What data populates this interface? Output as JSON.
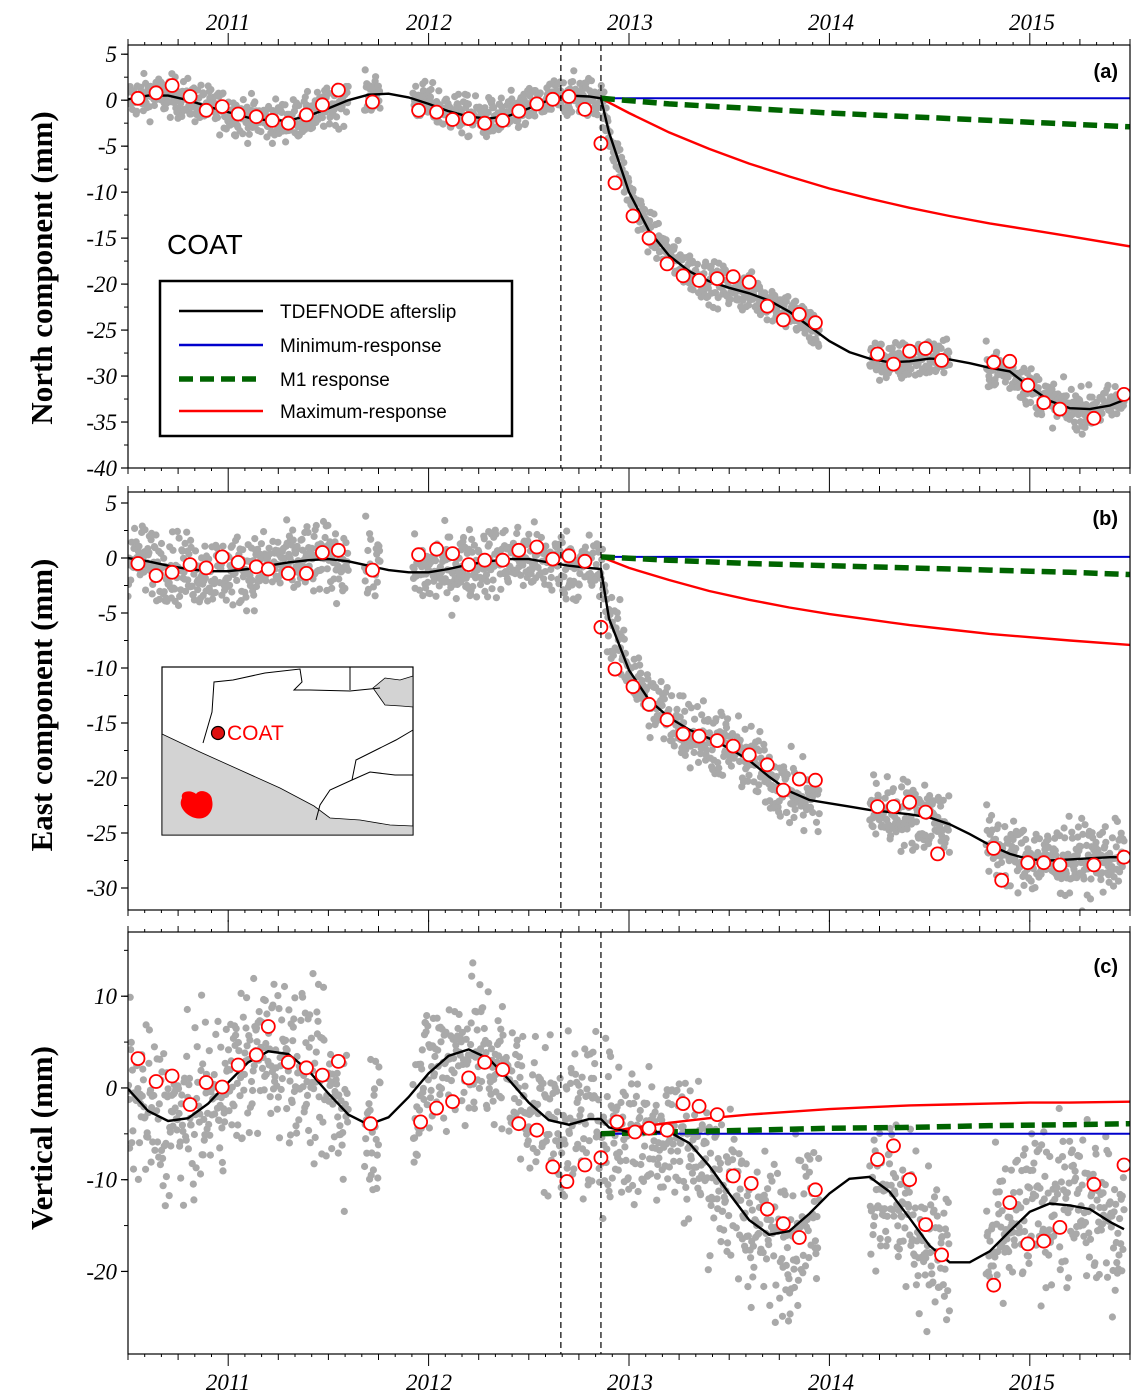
{
  "figure": {
    "station": "COAT",
    "inset_label": "COAT",
    "year_labels": [
      "2011",
      "2012",
      "2013",
      "2014",
      "2015"
    ],
    "event_lines": [
      2012.66,
      2012.86
    ],
    "legend": {
      "items": [
        {
          "label": "TDEFNODE afterslip",
          "color": "#000000",
          "dash": "solid"
        },
        {
          "label": "Minimum-response",
          "color": "#0000cc",
          "dash": "solid"
        },
        {
          "label": "M1 response",
          "color": "#006400",
          "dash": "dashed"
        },
        {
          "label": "Maximum-response",
          "color": "#ff0000",
          "dash": "solid"
        }
      ]
    },
    "colors": {
      "daily": "#a9a9a9",
      "monthly_fill": "#ffffff",
      "monthly_edge": "#ff0000",
      "afterslip": "#000000",
      "min": "#0000cc",
      "m1": "#006400",
      "max": "#ff0000"
    }
  },
  "chart_data": [
    {
      "type": "scatter",
      "panel_label": "(a)",
      "ylabel": "North component (mm)",
      "xlim": [
        2010.5,
        2015.5
      ],
      "ylim": [
        -40,
        6
      ],
      "yticks": [
        5,
        0,
        -5,
        -10,
        -15,
        -20,
        -25,
        -30,
        -35,
        -40
      ],
      "daily_model": {
        "kind": "north",
        "noise": 1.1
      },
      "monthly_points": {
        "x": [
          2010.55,
          2010.64,
          2010.72,
          2010.81,
          2010.89,
          2010.97,
          2011.05,
          2011.14,
          2011.22,
          2011.3,
          2011.39,
          2011.47,
          2011.55,
          2011.72,
          2011.95,
          2012.04,
          2012.12,
          2012.2,
          2012.28,
          2012.37,
          2012.45,
          2012.54,
          2012.62,
          2012.7,
          2012.78,
          2012.86,
          2012.93,
          2013.02,
          2013.1,
          2013.19,
          2013.27,
          2013.35,
          2013.44,
          2013.52,
          2013.6,
          2013.69,
          2013.77,
          2013.85,
          2013.93,
          2014.24,
          2014.32,
          2014.4,
          2014.48,
          2014.56,
          2014.82,
          2014.9,
          2014.99,
          2015.07,
          2015.15,
          2015.32,
          2015.47
        ],
        "y": [
          0.2,
          0.8,
          1.6,
          0.4,
          -1.1,
          -0.7,
          -1.5,
          -1.8,
          -2.2,
          -2.5,
          -1.6,
          -0.5,
          1.1,
          -0.2,
          -1.1,
          -1.3,
          -2.1,
          -2.0,
          -2.5,
          -2.2,
          -1.2,
          -0.4,
          0.1,
          0.4,
          -1.0,
          -4.7,
          -9.0,
          -12.6,
          -15.0,
          -17.8,
          -19.1,
          -19.6,
          -19.4,
          -19.2,
          -19.8,
          -22.4,
          -23.9,
          -23.3,
          -24.2,
          -27.6,
          -28.7,
          -27.3,
          -27.0,
          -28.3,
          -28.5,
          -28.4,
          -31.0,
          -32.9,
          -33.6,
          -34.6,
          -32.0
        ]
      },
      "series": [
        {
          "name": "TDEFNODE afterslip",
          "x": [
            2010.5,
            2010.6,
            2010.7,
            2010.8,
            2010.9,
            2011.0,
            2011.1,
            2011.2,
            2011.3,
            2011.4,
            2011.5,
            2011.6,
            2011.7,
            2011.8,
            2011.9,
            2012.0,
            2012.1,
            2012.2,
            2012.3,
            2012.4,
            2012.5,
            2012.6,
            2012.7,
            2012.8,
            2012.86,
            2012.9,
            2013.0,
            2013.1,
            2013.2,
            2013.3,
            2013.4,
            2013.5,
            2013.6,
            2013.7,
            2013.8,
            2013.9,
            2014.0,
            2014.1,
            2014.2,
            2014.3,
            2014.4,
            2014.5,
            2014.6,
            2014.7,
            2014.8,
            2014.9,
            2015.0,
            2015.1,
            2015.2,
            2015.3,
            2015.4,
            2015.47
          ],
          "y": [
            0.1,
            0.5,
            0.5,
            0.0,
            -0.7,
            -1.3,
            -1.9,
            -2.2,
            -2.2,
            -1.7,
            -0.9,
            0.0,
            0.6,
            0.7,
            0.3,
            -0.4,
            -1.2,
            -1.8,
            -2.0,
            -1.7,
            -0.9,
            0.0,
            0.5,
            0.4,
            0.2,
            -3.5,
            -10.0,
            -14.2,
            -16.9,
            -18.6,
            -19.7,
            -20.4,
            -21.0,
            -21.8,
            -23.0,
            -24.6,
            -26.2,
            -27.4,
            -28.1,
            -28.5,
            -28.4,
            -28.1,
            -28.2,
            -28.6,
            -29.1,
            -29.5,
            -31.2,
            -32.7,
            -33.5,
            -33.6,
            -33.2,
            -32.6
          ]
        },
        {
          "name": "Minimum-response",
          "x": [
            2012.86,
            2015.5
          ],
          "y": [
            0.2,
            0.2
          ]
        },
        {
          "name": "M1 response",
          "x": [
            2012.86,
            2013.2,
            2013.6,
            2014.0,
            2014.4,
            2014.8,
            2015.2,
            2015.5
          ],
          "y": [
            0.2,
            -0.4,
            -0.9,
            -1.4,
            -1.8,
            -2.2,
            -2.6,
            -2.9
          ]
        },
        {
          "name": "Maximum-response",
          "x": [
            2012.86,
            2013.0,
            2013.2,
            2013.4,
            2013.6,
            2013.8,
            2014.0,
            2014.2,
            2014.4,
            2014.6,
            2014.8,
            2015.0,
            2015.2,
            2015.5
          ],
          "y": [
            0.2,
            -1.4,
            -3.5,
            -5.3,
            -6.9,
            -8.3,
            -9.6,
            -10.7,
            -11.7,
            -12.6,
            -13.4,
            -14.1,
            -14.8,
            -15.9
          ]
        }
      ]
    },
    {
      "type": "scatter",
      "panel_label": "(b)",
      "ylabel": "East component (mm)",
      "xlim": [
        2010.5,
        2015.5
      ],
      "ylim": [
        -32,
        6
      ],
      "yticks": [
        5,
        0,
        -5,
        -10,
        -15,
        -20,
        -25,
        -30
      ],
      "daily_model": {
        "kind": "east",
        "noise": 1.6
      },
      "monthly_points": {
        "x": [
          2010.55,
          2010.64,
          2010.72,
          2010.81,
          2010.89,
          2010.97,
          2011.05,
          2011.14,
          2011.2,
          2011.3,
          2011.39,
          2011.47,
          2011.55,
          2011.72,
          2011.95,
          2012.04,
          2012.12,
          2012.2,
          2012.28,
          2012.37,
          2012.45,
          2012.54,
          2012.62,
          2012.7,
          2012.78,
          2012.86,
          2012.93,
          2013.02,
          2013.1,
          2013.19,
          2013.27,
          2013.35,
          2013.44,
          2013.52,
          2013.6,
          2013.69,
          2013.77,
          2013.85,
          2013.93,
          2014.24,
          2014.32,
          2014.4,
          2014.48,
          2014.54,
          2014.82,
          2014.86,
          2014.99,
          2015.07,
          2015.15,
          2015.32,
          2015.47
        ],
        "y": [
          -0.5,
          -1.6,
          -1.3,
          -0.6,
          -0.9,
          0.1,
          -0.4,
          -0.8,
          -1.0,
          -1.4,
          -1.4,
          0.5,
          0.7,
          -1.1,
          0.3,
          0.8,
          0.4,
          -0.6,
          -0.2,
          -0.2,
          0.7,
          1.0,
          -0.1,
          0.2,
          -0.3,
          -6.3,
          -10.1,
          -11.7,
          -13.3,
          -14.7,
          -16.0,
          -16.2,
          -16.6,
          -17.1,
          -17.9,
          -18.8,
          -21.1,
          -20.1,
          -20.2,
          -22.6,
          -22.6,
          -22.2,
          -23.1,
          -26.9,
          -26.4,
          -29.3,
          -27.7,
          -27.7,
          -27.9,
          -27.9,
          -27.2
        ]
      },
      "series": [
        {
          "name": "TDEFNODE afterslip",
          "x": [
            2010.5,
            2010.6,
            2010.7,
            2010.8,
            2010.9,
            2011.0,
            2011.1,
            2011.2,
            2011.3,
            2011.4,
            2011.5,
            2011.6,
            2011.7,
            2011.8,
            2011.9,
            2012.0,
            2012.1,
            2012.2,
            2012.3,
            2012.4,
            2012.5,
            2012.6,
            2012.7,
            2012.8,
            2012.86,
            2012.9,
            2013.0,
            2013.1,
            2013.2,
            2013.3,
            2013.4,
            2013.5,
            2013.6,
            2013.7,
            2013.8,
            2013.9,
            2014.0,
            2014.1,
            2014.2,
            2014.3,
            2014.4,
            2014.5,
            2014.6,
            2014.7,
            2014.8,
            2014.9,
            2015.0,
            2015.1,
            2015.2,
            2015.3,
            2015.4,
            2015.47
          ],
          "y": [
            0.0,
            -0.3,
            -0.7,
            -1.0,
            -1.2,
            -1.2,
            -1.0,
            -0.7,
            -0.4,
            -0.2,
            -0.1,
            -0.3,
            -0.7,
            -1.1,
            -1.3,
            -1.3,
            -1.0,
            -0.6,
            -0.3,
            -0.1,
            -0.1,
            -0.4,
            -0.7,
            -0.9,
            -1.0,
            -5.5,
            -10.2,
            -12.9,
            -14.5,
            -15.6,
            -16.4,
            -17.3,
            -18.4,
            -19.9,
            -21.2,
            -22.0,
            -22.3,
            -22.6,
            -22.9,
            -23.1,
            -23.3,
            -23.6,
            -24.2,
            -25.1,
            -26.1,
            -26.9,
            -27.4,
            -27.5,
            -27.4,
            -27.3,
            -27.2,
            -27.2
          ]
        },
        {
          "name": "Minimum-response",
          "x": [
            2012.86,
            2015.5
          ],
          "y": [
            0.1,
            0.1
          ]
        },
        {
          "name": "M1 response",
          "x": [
            2012.86,
            2013.2,
            2013.6,
            2014.0,
            2014.4,
            2014.8,
            2015.2,
            2015.5
          ],
          "y": [
            0.1,
            -0.2,
            -0.5,
            -0.7,
            -0.9,
            -1.1,
            -1.3,
            -1.5
          ]
        },
        {
          "name": "Maximum-response",
          "x": [
            2012.86,
            2013.0,
            2013.2,
            2013.4,
            2013.6,
            2013.8,
            2014.0,
            2014.2,
            2014.4,
            2014.6,
            2014.8,
            2015.0,
            2015.2,
            2015.5
          ],
          "y": [
            0.1,
            -0.9,
            -2.0,
            -3.0,
            -3.8,
            -4.5,
            -5.1,
            -5.6,
            -6.1,
            -6.5,
            -6.9,
            -7.2,
            -7.5,
            -7.9
          ]
        }
      ]
    },
    {
      "type": "scatter",
      "panel_label": "(c)",
      "ylabel": "Vertical (mm)",
      "xlim": [
        2010.5,
        2015.5
      ],
      "ylim": [
        -29,
        17
      ],
      "yticks": [
        10,
        0,
        -10,
        -20
      ],
      "daily_model": {
        "kind": "vertical",
        "noise": 4.2
      },
      "monthly_points": {
        "x": [
          2010.55,
          2010.64,
          2010.72,
          2010.81,
          2010.89,
          2010.97,
          2011.05,
          2011.14,
          2011.2,
          2011.3,
          2011.39,
          2011.47,
          2011.55,
          2011.71,
          2011.96,
          2012.04,
          2012.12,
          2012.2,
          2012.28,
          2012.37,
          2012.45,
          2012.54,
          2012.62,
          2012.69,
          2012.78,
          2012.86,
          2012.94,
          2013.03,
          2013.1,
          2013.19,
          2013.27,
          2013.35,
          2013.44,
          2013.52,
          2013.61,
          2013.69,
          2013.77,
          2013.85,
          2013.93,
          2014.24,
          2014.32,
          2014.4,
          2014.48,
          2014.56,
          2014.82,
          2014.9,
          2014.99,
          2015.07,
          2015.15,
          2015.32,
          2015.47
        ],
        "y": [
          3.2,
          0.7,
          1.3,
          -1.8,
          0.6,
          0.1,
          2.5,
          3.6,
          6.7,
          2.8,
          2.2,
          1.4,
          2.9,
          -3.9,
          -3.7,
          -2.2,
          -1.5,
          1.1,
          2.8,
          2.0,
          -3.9,
          -4.6,
          -8.6,
          -10.2,
          -8.4,
          -7.6,
          -3.7,
          -4.8,
          -4.4,
          -4.6,
          -1.7,
          -2.0,
          -2.9,
          -9.6,
          -10.4,
          -13.2,
          -14.8,
          -16.3,
          -11.1,
          -7.8,
          -6.3,
          -10.0,
          -14.9,
          -18.2,
          -21.5,
          -12.5,
          -17.0,
          -16.7,
          -15.2,
          -10.5,
          -8.4
        ]
      },
      "series": [
        {
          "name": "TDEFNODE afterslip",
          "x": [
            2010.5,
            2010.6,
            2010.7,
            2010.8,
            2010.9,
            2011.0,
            2011.1,
            2011.2,
            2011.3,
            2011.4,
            2011.5,
            2011.6,
            2011.7,
            2011.8,
            2011.9,
            2012.0,
            2012.1,
            2012.2,
            2012.3,
            2012.4,
            2012.5,
            2012.6,
            2012.7,
            2012.8,
            2012.86,
            2012.9,
            2013.0,
            2013.1,
            2013.2,
            2013.3,
            2013.4,
            2013.5,
            2013.6,
            2013.7,
            2013.8,
            2013.9,
            2014.0,
            2014.1,
            2014.2,
            2014.3,
            2014.4,
            2014.5,
            2014.6,
            2014.7,
            2014.8,
            2014.9,
            2015.0,
            2015.1,
            2015.2,
            2015.3,
            2015.4,
            2015.47
          ],
          "y": [
            -0.1,
            -2.5,
            -3.6,
            -3.3,
            -1.7,
            0.6,
            2.8,
            4.0,
            3.7,
            1.9,
            -0.6,
            -2.9,
            -4.0,
            -3.2,
            -1.0,
            1.6,
            3.5,
            4.2,
            3.2,
            0.9,
            -1.6,
            -3.5,
            -4.0,
            -3.4,
            -3.4,
            -4.3,
            -4.8,
            -4.8,
            -4.8,
            -6.0,
            -8.5,
            -11.5,
            -14.4,
            -16.0,
            -15.6,
            -13.7,
            -11.5,
            -9.9,
            -9.7,
            -11.3,
            -14.2,
            -17.2,
            -19.0,
            -19.0,
            -17.8,
            -15.6,
            -13.5,
            -12.6,
            -12.8,
            -13.2,
            -14.6,
            -15.4
          ]
        },
        {
          "name": "Minimum-response",
          "x": [
            2012.86,
            2015.5
          ],
          "y": [
            -5.0,
            -5.0
          ]
        },
        {
          "name": "M1 response",
          "x": [
            2012.86,
            2013.2,
            2013.6,
            2014.0,
            2014.4,
            2014.8,
            2015.2,
            2015.5
          ],
          "y": [
            -5.0,
            -4.8,
            -4.6,
            -4.4,
            -4.3,
            -4.1,
            -4.0,
            -3.9
          ]
        },
        {
          "name": "Maximum-response",
          "x": [
            2012.86,
            2013.0,
            2013.2,
            2013.4,
            2013.6,
            2013.8,
            2014.0,
            2014.2,
            2014.4,
            2014.6,
            2014.8,
            2015.0,
            2015.2,
            2015.5
          ],
          "y": [
            -5.0,
            -4.4,
            -3.8,
            -3.3,
            -2.9,
            -2.6,
            -2.3,
            -2.1,
            -1.9,
            -1.8,
            -1.7,
            -1.6,
            -1.6,
            -1.5
          ]
        }
      ]
    }
  ]
}
